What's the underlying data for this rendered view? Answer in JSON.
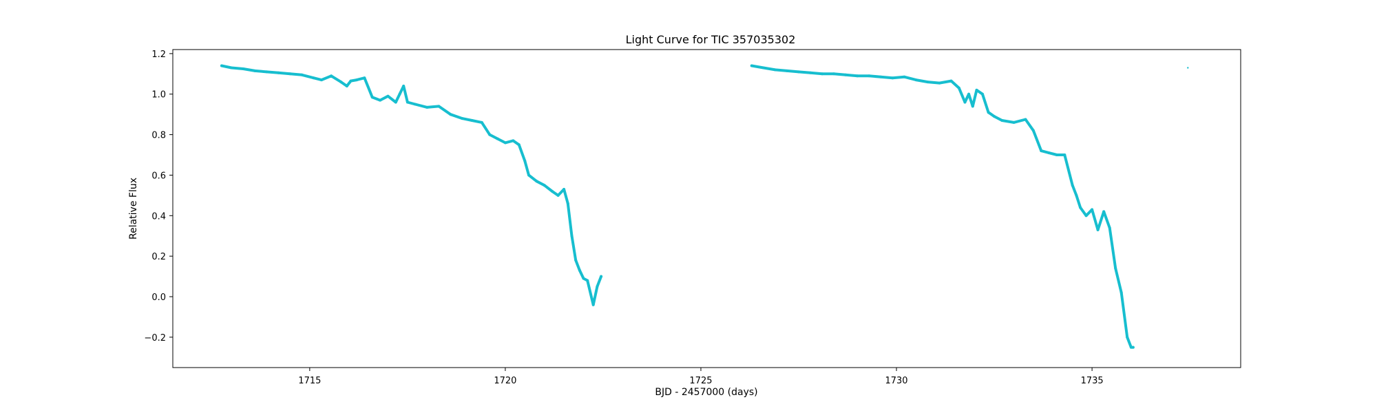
{
  "chart_data": {
    "type": "scatter",
    "title": "Light Curve for TIC 357035302",
    "xlabel": "BJD - 2457000 (days)",
    "ylabel": "Relative Flux",
    "xlim": [
      1711.5,
      1738.8
    ],
    "ylim": [
      -0.35,
      1.22
    ],
    "xticks": [
      1715,
      1720,
      1725,
      1730,
      1735
    ],
    "xtick_labels": [
      "1715",
      "1720",
      "1725",
      "1730",
      "1735"
    ],
    "yticks": [
      -0.2,
      0.0,
      0.2,
      0.4,
      0.6,
      0.8,
      1.0,
      1.2
    ],
    "ytick_labels": [
      "−0.2",
      "0.0",
      "0.2",
      "0.4",
      "0.6",
      "0.8",
      "1.0",
      "1.2"
    ],
    "grid": false,
    "legend": "none",
    "marker_color": "#17becf",
    "series": [
      {
        "x": [
          1712.75,
          1713.0,
          1713.3,
          1713.6,
          1713.9,
          1714.2,
          1714.5,
          1714.8,
          1715.1,
          1715.3,
          1715.55,
          1715.8,
          1715.95,
          1716.05,
          1716.2,
          1716.4,
          1716.6,
          1716.8,
          1717.0,
          1717.2,
          1717.3,
          1717.4,
          1717.5,
          1717.7,
          1718.0,
          1718.3,
          1718.6,
          1718.9,
          1719.15,
          1719.4,
          1719.6,
          1719.8,
          1720.0,
          1720.2,
          1720.35,
          1720.5,
          1720.6,
          1720.8,
          1721.0,
          1721.2,
          1721.35,
          1721.5,
          1721.6,
          1721.7,
          1721.8,
          1721.9,
          1722.0,
          1722.1,
          1722.25,
          1722.35,
          1722.45
        ],
        "y": [
          1.14,
          1.13,
          1.125,
          1.115,
          1.11,
          1.105,
          1.1,
          1.095,
          1.08,
          1.07,
          1.09,
          1.06,
          1.04,
          1.065,
          1.07,
          1.08,
          0.985,
          0.97,
          0.99,
          0.96,
          1.0,
          1.04,
          0.96,
          0.95,
          0.935,
          0.94,
          0.9,
          0.88,
          0.87,
          0.86,
          0.8,
          0.78,
          0.76,
          0.77,
          0.75,
          0.67,
          0.6,
          0.57,
          0.55,
          0.52,
          0.5,
          0.53,
          0.46,
          0.3,
          0.18,
          0.13,
          0.09,
          0.08,
          -0.04,
          0.05,
          0.1
        ]
      },
      {
        "x": [
          1726.3,
          1726.6,
          1726.9,
          1727.2,
          1727.5,
          1727.8,
          1728.1,
          1728.4,
          1728.7,
          1729.0,
          1729.3,
          1729.6,
          1729.9,
          1730.2,
          1730.5,
          1730.8,
          1731.1,
          1731.4,
          1731.6,
          1731.75,
          1731.85,
          1731.95,
          1732.05,
          1732.2,
          1732.35,
          1732.5,
          1732.7,
          1733.0,
          1733.3,
          1733.5,
          1733.7,
          1733.9,
          1734.1,
          1734.3,
          1734.5,
          1734.6,
          1734.7,
          1734.85,
          1735.0,
          1735.15,
          1735.3,
          1735.45,
          1735.6,
          1735.75,
          1735.9,
          1736.0,
          1736.05
        ],
        "y": [
          1.14,
          1.13,
          1.12,
          1.115,
          1.11,
          1.105,
          1.1,
          1.1,
          1.095,
          1.09,
          1.09,
          1.085,
          1.08,
          1.085,
          1.07,
          1.06,
          1.055,
          1.065,
          1.03,
          0.96,
          1.0,
          0.94,
          1.02,
          1.0,
          0.91,
          0.89,
          0.87,
          0.86,
          0.875,
          0.82,
          0.72,
          0.71,
          0.7,
          0.7,
          0.55,
          0.5,
          0.44,
          0.4,
          0.43,
          0.33,
          0.42,
          0.34,
          0.14,
          0.02,
          -0.2,
          -0.25,
          -0.25
        ]
      },
      {
        "x": [
          1737.45
        ],
        "y": [
          1.13
        ]
      }
    ]
  }
}
